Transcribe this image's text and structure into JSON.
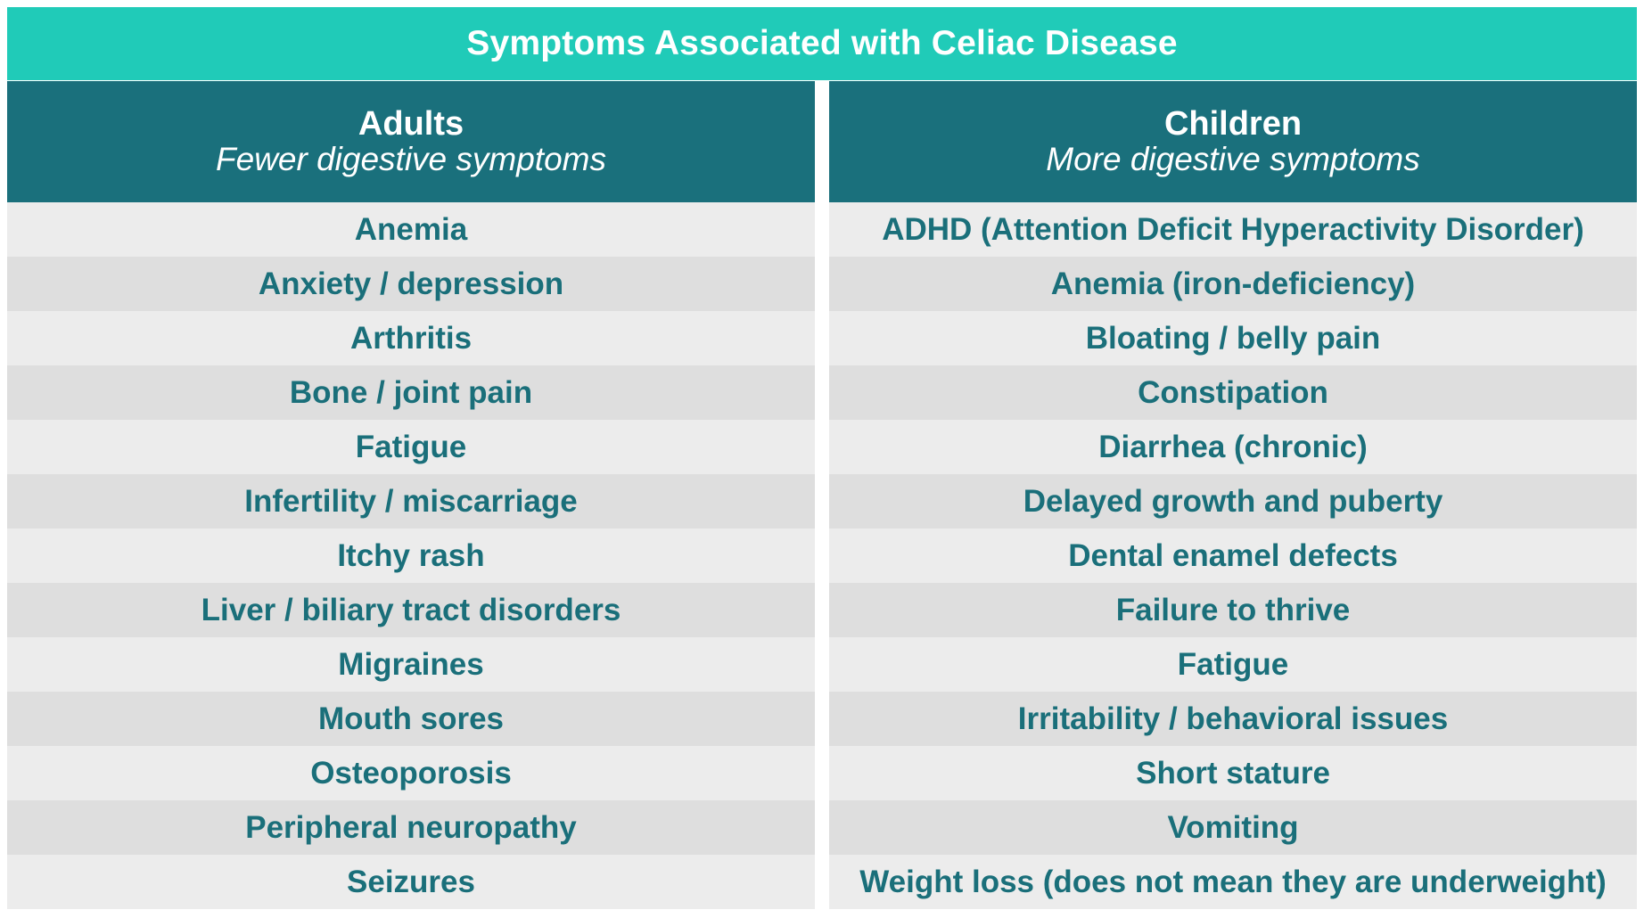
{
  "title": "Symptoms Associated with Celiac Disease",
  "colors": {
    "title_bar": "#20cbb8",
    "header": "#1a707c",
    "row_text": "#1a6f7a",
    "row_light": "#ececec",
    "row_dark": "#dedede"
  },
  "adults": {
    "heading": "Adults",
    "subheading": "Fewer digestive symptoms",
    "items": [
      "Anemia",
      "Anxiety / depression",
      "Arthritis",
      "Bone / joint pain",
      "Fatigue",
      "Infertility / miscarriage",
      "Itchy rash",
      "Liver / biliary tract disorders",
      "Migraines",
      "Mouth sores",
      "Osteoporosis",
      "Peripheral neuropathy",
      "Seizures"
    ]
  },
  "children": {
    "heading": "Children",
    "subheading": "More digestive symptoms",
    "items": [
      "ADHD (Attention Deficit Hyperactivity Disorder)",
      "Anemia (iron-deficiency)",
      "Bloating / belly pain",
      "Constipation",
      "Diarrhea (chronic)",
      "Delayed growth and puberty",
      "Dental enamel defects",
      "Failure to thrive",
      "Fatigue",
      "Irritability / behavioral issues",
      "Short stature",
      "Vomiting",
      "Weight loss (does not mean they are underweight)"
    ]
  }
}
